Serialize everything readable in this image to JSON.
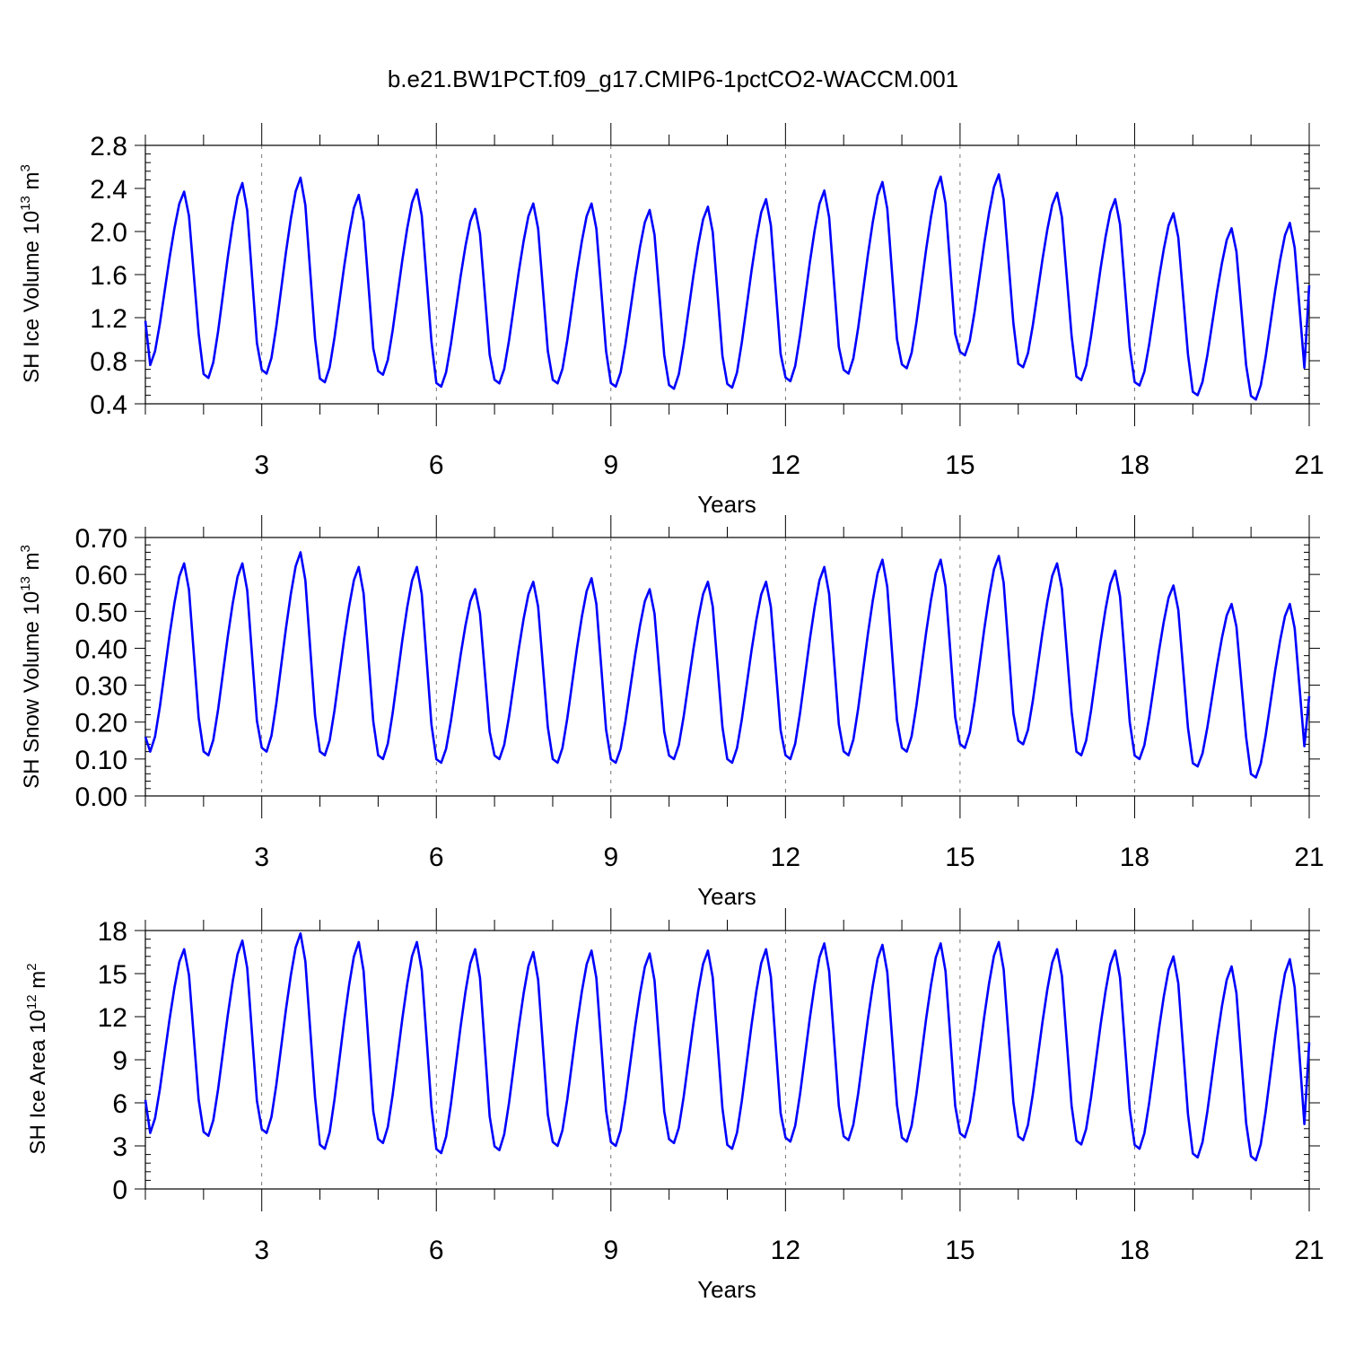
{
  "title": "b.e21.BW1PCT.f09_g17.CMIP6-1pctCO2-WACCM.001",
  "line_color": "#0000ff",
  "chart_data": [
    {
      "type": "line",
      "ylabel": {
        "main": "SH Ice Volume 10",
        "sup1": "13",
        "mid": " m",
        "sup2": "3"
      },
      "xlabel": "Years",
      "xlim": [
        1,
        21
      ],
      "ylim": [
        0.4,
        2.8
      ],
      "xticks": [
        "3",
        "6",
        "9",
        "12",
        "15",
        "18",
        "21"
      ],
      "yticks": [
        "0.4",
        "0.8",
        "1.2",
        "1.6",
        "2.0",
        "2.4",
        "2.8"
      ],
      "grid": "dashed vertical lines at major x ticks",
      "series": [
        {
          "mins": [
            0.76,
            0.64,
            0.68,
            0.6,
            0.67,
            0.56,
            0.59,
            0.59,
            0.56,
            0.54,
            0.55,
            0.61,
            0.68,
            0.73,
            0.85,
            0.74,
            0.62,
            0.57,
            0.48,
            0.44
          ],
          "maxs": [
            2.37,
            2.45,
            2.5,
            2.34,
            2.39,
            2.21,
            2.26,
            2.26,
            2.2,
            2.23,
            2.3,
            2.38,
            2.46,
            2.51,
            2.53,
            2.36,
            2.3,
            2.17,
            2.03,
            2.08
          ],
          "start": 1.17,
          "end": 1.5
        }
      ]
    },
    {
      "type": "line",
      "ylabel": {
        "main": "SH Snow Volume 10",
        "sup1": "13",
        "mid": " m",
        "sup2": "3"
      },
      "xlabel": "Years",
      "xlim": [
        1,
        21
      ],
      "ylim": [
        0.0,
        0.7
      ],
      "xticks": [
        "3",
        "6",
        "9",
        "12",
        "15",
        "18",
        "21"
      ],
      "yticks": [
        "0.00",
        "0.10",
        "0.20",
        "0.30",
        "0.40",
        "0.50",
        "0.60",
        "0.70"
      ],
      "grid": "dashed vertical lines at major x ticks",
      "series": [
        {
          "mins": [
            0.12,
            0.11,
            0.12,
            0.11,
            0.1,
            0.09,
            0.1,
            0.09,
            0.09,
            0.1,
            0.09,
            0.1,
            0.11,
            0.12,
            0.13,
            0.14,
            0.11,
            0.1,
            0.08,
            0.05
          ],
          "maxs": [
            0.63,
            0.63,
            0.66,
            0.62,
            0.62,
            0.56,
            0.58,
            0.59,
            0.56,
            0.58,
            0.58,
            0.62,
            0.64,
            0.64,
            0.65,
            0.63,
            0.61,
            0.57,
            0.52,
            0.52
          ],
          "start": 0.16,
          "end": 0.27
        }
      ]
    },
    {
      "type": "line",
      "ylabel": {
        "main": "SH Ice Area 10",
        "sup1": "12",
        "mid": " m",
        "sup2": "2"
      },
      "xlabel": "Years",
      "xlim": [
        1,
        21
      ],
      "ylim": [
        0,
        18
      ],
      "xticks": [
        "3",
        "6",
        "9",
        "12",
        "15",
        "18",
        "21"
      ],
      "yticks": [
        "0",
        "3",
        "6",
        "9",
        "12",
        "15",
        "18"
      ],
      "grid": "dashed vertical lines at major x ticks",
      "series": [
        {
          "mins": [
            3.9,
            3.7,
            3.9,
            2.8,
            3.2,
            2.5,
            2.7,
            3.0,
            3.0,
            3.2,
            2.8,
            3.3,
            3.4,
            3.3,
            3.6,
            3.4,
            3.1,
            2.8,
            2.2,
            2.0
          ],
          "maxs": [
            16.7,
            17.3,
            17.8,
            17.2,
            17.2,
            16.7,
            16.5,
            16.6,
            16.4,
            16.6,
            16.7,
            17.1,
            17.0,
            17.1,
            17.2,
            16.7,
            16.6,
            16.2,
            15.5,
            16.0
          ],
          "start": 6.2,
          "end": 10.2
        }
      ]
    }
  ]
}
